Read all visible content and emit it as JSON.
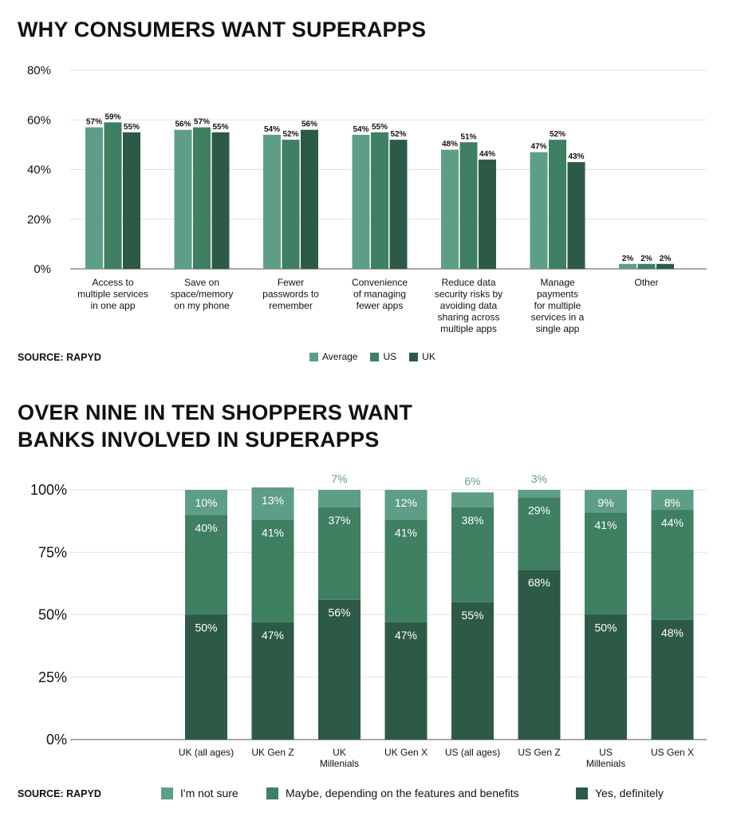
{
  "charts": [
    {
      "title": "WHY CONSUMERS WANT SUPERAPPS",
      "source": "SOURCE: RAPYD",
      "chart_data": {
        "type": "bar",
        "categories": [
          "Access to\nmultiple services\nin one app",
          "Save on\nspace/memory\non my phone",
          "Fewer\npasswords to\nremember",
          "Convenience\nof managing\nfewer apps",
          "Reduce data\nsecurity risks by\navoiding data\nsharing across\nmultiple apps",
          "Manage\npayments\nfor multiple\nservices in a\nsingle app",
          "Other"
        ],
        "series": [
          {
            "name": "Average",
            "color": "#5e9e87",
            "values": [
              57,
              56,
              54,
              54,
              48,
              47,
              2
            ],
            "labels": [
              "57%",
              "56%",
              "54%",
              "54%",
              "48%",
              "47%",
              "2%"
            ]
          },
          {
            "name": "US",
            "color": "#3f7f62",
            "values": [
              59,
              57,
              52,
              55,
              51,
              52,
              2
            ],
            "labels": [
              "59%",
              "57%",
              "52%",
              "55%",
              "51%",
              "52%",
              "2%"
            ]
          },
          {
            "name": "UK",
            "color": "#2d5a47",
            "values": [
              55,
              55,
              56,
              52,
              44,
              43,
              2
            ],
            "labels": [
              "55%",
              "55%",
              "56%",
              "52%",
              "44%",
              "43%",
              "2%"
            ]
          }
        ],
        "ylim": [
          0,
          80
        ],
        "yticks": [
          0,
          20,
          40,
          60,
          80
        ],
        "ytick_labels": [
          "0%",
          "20%",
          "40%",
          "60%",
          "80%"
        ],
        "grid": true,
        "legend": "bottom"
      }
    },
    {
      "title": "OVER NINE IN TEN SHOPPERS WANT\nBANKS INVOLVED IN SUPERAPPS",
      "source": "SOURCE: RAPYD",
      "chart_data": {
        "type": "bar",
        "stacked": true,
        "categories": [
          "UK (all ages)",
          "UK Gen Z",
          "UK\nMillenials",
          "UK Gen X",
          "US (all ages)",
          "US Gen Z",
          "US\nMillenials",
          "US Gen X"
        ],
        "series": [
          {
            "name": "Yes, definitely",
            "color": "#2d5a47",
            "values": [
              50,
              47,
              56,
              47,
              55,
              68,
              50,
              48
            ],
            "labels": [
              "50%",
              "47%",
              "56%",
              "47%",
              "55%",
              "68%",
              "50%",
              "48%"
            ]
          },
          {
            "name": "Maybe, depending on the features and benefits",
            "color": "#3f7f62",
            "values": [
              40,
              41,
              37,
              41,
              38,
              29,
              41,
              44
            ],
            "labels": [
              "40%",
              "41%",
              "37%",
              "41%",
              "38%",
              "29%",
              "41%",
              "44%"
            ]
          },
          {
            "name": "I'm not sure",
            "color": "#5e9e87",
            "values": [
              10,
              13,
              7,
              12,
              6,
              3,
              9,
              8
            ],
            "labels": [
              "10%",
              "13%",
              "7%",
              "12%",
              "6%",
              "3%",
              "9%",
              "8%"
            ]
          }
        ],
        "ylim": [
          0,
          100
        ],
        "yticks": [
          0,
          25,
          50,
          75,
          100
        ],
        "ytick_labels": [
          "0%",
          "25%",
          "50%",
          "75%",
          "100%"
        ],
        "grid": true,
        "legend": "bottom",
        "legend_order": [
          "I'm not sure",
          "Maybe, depending on the features and benefits",
          "Yes, definitely"
        ]
      }
    }
  ]
}
